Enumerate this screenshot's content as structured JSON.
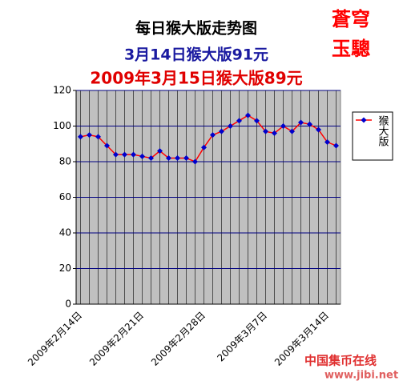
{
  "chart_data": {
    "type": "line",
    "title": "每日猴大版走势图",
    "subtitle": "3月14日猴大版91元",
    "subtitle2": "2009年3月15日猴大版89元",
    "stamp": [
      "蒼穹",
      "玉驄"
    ],
    "watermark": [
      "中国集币在线",
      "www.jibi.net"
    ],
    "categories": [
      "2009年2月14日",
      null,
      null,
      null,
      null,
      null,
      null,
      "2009年2月21日",
      null,
      null,
      null,
      null,
      null,
      null,
      "2009年2月28日",
      null,
      null,
      null,
      null,
      null,
      null,
      "2009年3月7日",
      null,
      null,
      null,
      null,
      null,
      null,
      "2009年3月14日",
      null
    ],
    "series": [
      {
        "name": "猴大版",
        "color": "#ff0000",
        "marker_color": "#0000cc",
        "values": [
          94,
          95,
          94,
          89,
          84,
          84,
          84,
          83,
          82,
          86,
          82,
          82,
          82,
          80,
          88,
          95,
          97,
          100,
          103,
          106,
          103,
          97,
          96,
          100,
          97,
          102,
          101,
          98,
          91,
          89
        ]
      }
    ],
    "ylim": [
      0,
      120
    ],
    "yticks": [
      0,
      20,
      40,
      60,
      80,
      100,
      120
    ],
    "grid": true,
    "legend": "right",
    "plot_background": "#c0c0c0",
    "grid_color": "#000080"
  }
}
